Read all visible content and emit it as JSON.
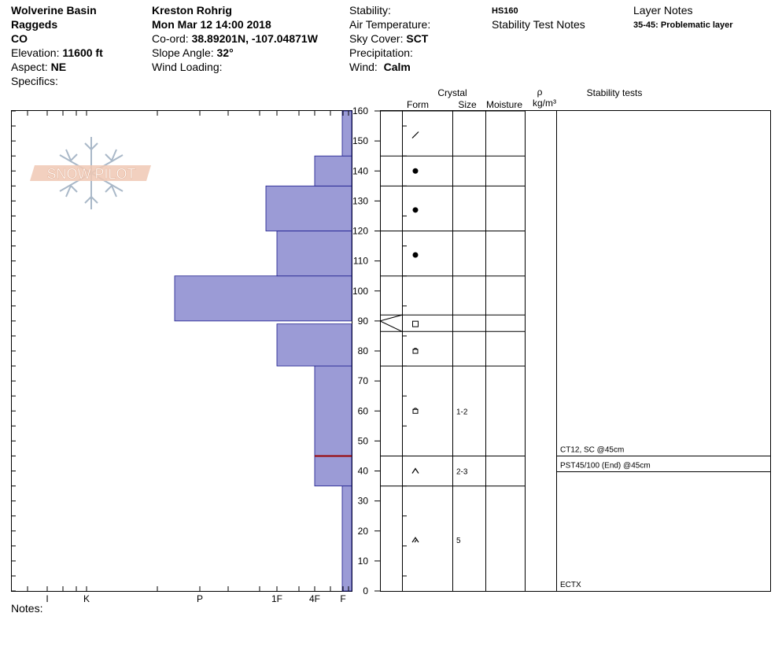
{
  "header": {
    "location": "Wolverine Basin",
    "range": "Raggeds",
    "state": "CO",
    "elevation_label": "Elevation:",
    "elevation_value": "11600 ft",
    "aspect_label": "Aspect:",
    "aspect_value": "NE",
    "specifics_label": "Specifics:",
    "observer": "Kreston Rohrig",
    "datetime": "Mon Mar 12 14:00 2018",
    "coord_label": "Co-ord:",
    "coord_value": "38.89201N, -107.04871W",
    "slope_label": "Slope Angle:",
    "slope_value": "32°",
    "wind_loading_label": "Wind Loading:",
    "stability_label": "Stability:",
    "air_temp_label": "Air Temperature:",
    "sky_label": "Sky Cover:",
    "sky_value": "SCT",
    "precip_label": "Precipitation:",
    "wind_label": "Wind:",
    "wind_value": "Calm",
    "hs": "HS160",
    "stability_test_notes": "Stability Test Notes",
    "layer_notes_title": "Layer Notes",
    "layer_note": "35-45: Problematic layer",
    "notes_label": "Notes:"
  },
  "logo": {
    "text": "SNOW PILOT"
  },
  "column_headers": {
    "crystal": "Crystal",
    "form": "Form",
    "size": "Size",
    "moisture": "Moisture",
    "rho": "ρ",
    "density_unit": "kg/m³",
    "stability_tests": "Stability tests"
  },
  "colors": {
    "hardness_fill": "#9b9bd6",
    "hardness_stroke": "#1a1a8c",
    "weak_layer": "#990000",
    "logo_fill": "#f0c8b4",
    "snowflake": "#a9b8c8"
  },
  "chart_data": {
    "type": "snow_profile",
    "y_axis": {
      "min": 0,
      "max": 160,
      "ticks": [
        0,
        10,
        20,
        30,
        40,
        50,
        60,
        70,
        80,
        90,
        100,
        110,
        120,
        130,
        140,
        150,
        160
      ]
    },
    "hardness_scale": [
      "I",
      "K",
      "P",
      "1F",
      "4F",
      "F"
    ],
    "hardness_axis_labels": [
      "I",
      "K",
      "P",
      "1F",
      "4F",
      "F"
    ],
    "hardness_layers": [
      {
        "bottom": 0,
        "top": 35,
        "hardness": "F+"
      },
      {
        "bottom": 35,
        "top": 75,
        "hardness": "4F"
      },
      {
        "bottom": 75,
        "top": 89,
        "hardness": "1F"
      },
      {
        "bottom": 90,
        "top": 105,
        "hardness": "P-"
      },
      {
        "bottom": 105,
        "top": 120,
        "hardness": "1F"
      },
      {
        "bottom": 120,
        "top": 135,
        "hardness": "1F+"
      },
      {
        "bottom": 135,
        "top": 145,
        "hardness": "4F"
      },
      {
        "bottom": 145,
        "top": 160,
        "hardness": "F+"
      }
    ],
    "weak_layer_height": 45,
    "layer_boundaries": [
      0,
      35,
      45,
      75,
      87,
      92,
      105,
      120,
      135,
      145,
      160
    ],
    "crystals": [
      {
        "height": 17,
        "form": "surface hoar",
        "size": "5"
      },
      {
        "height": 40,
        "form": "faceted",
        "size": "2-3"
      },
      {
        "height": 60,
        "form": "rounding facets",
        "size": "1-2"
      },
      {
        "height": 80,
        "form": "rounding facets",
        "size": ""
      },
      {
        "height": 89,
        "form": "crust",
        "size": ""
      },
      {
        "height": 112,
        "form": "rounded",
        "size": ""
      },
      {
        "height": 127,
        "form": "rounded",
        "size": ""
      },
      {
        "height": 140,
        "form": "rounded",
        "size": ""
      },
      {
        "height": 152,
        "form": "precipitation particles",
        "size": ""
      }
    ],
    "stability_tests": [
      {
        "height": 45,
        "text": "CT12, SC @45cm",
        "position": "above"
      },
      {
        "height": 45,
        "text": "PST45/100 (End) @45cm",
        "position": "below"
      },
      {
        "height": 0,
        "text": "ECTX",
        "position": "above"
      }
    ]
  }
}
